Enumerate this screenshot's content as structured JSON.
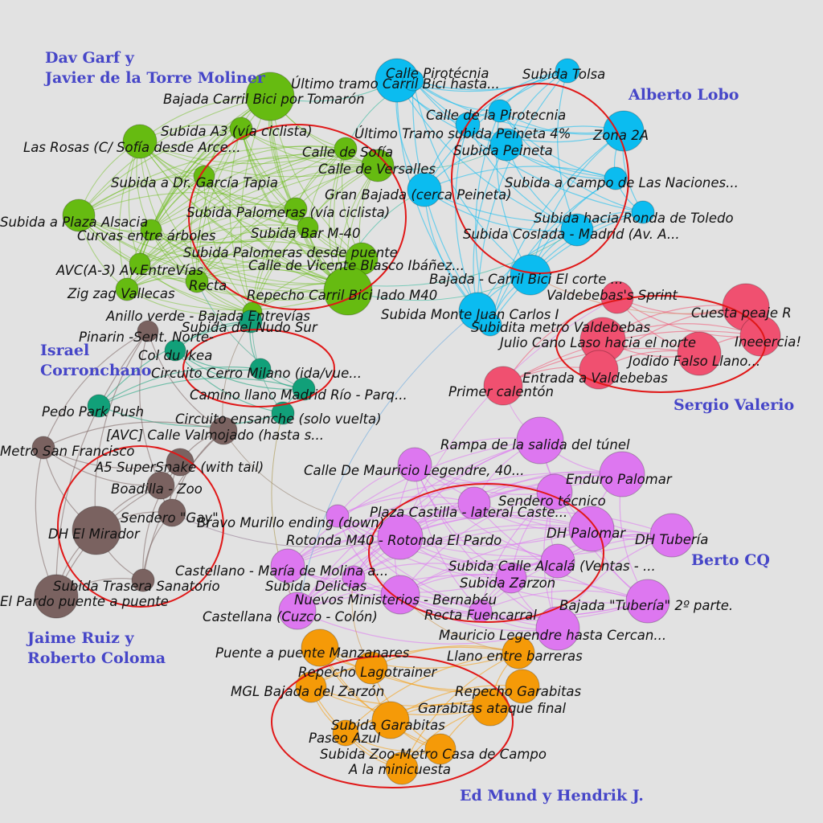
{
  "colors": {
    "background": "#e2e2e2",
    "cluster_ring": "#e01818",
    "group_label": "#4646c8",
    "green": "#66bb11",
    "blue": "#0bbcf0",
    "red": "#f05070",
    "teal": "#11a079",
    "brown": "#7a6260",
    "purple": "#dd77f0",
    "orange": "#f59a08"
  },
  "group_labels": [
    {
      "id": "g-green",
      "lines": [
        "Dav Garf  y",
        "Javier de la Torre Moliner"
      ]
    },
    {
      "id": "g-blue",
      "lines": [
        "Alberto Lobo"
      ]
    },
    {
      "id": "g-red",
      "lines": [
        "Sergio Valerio"
      ]
    },
    {
      "id": "g-teal",
      "lines": [
        "Israel",
        "Corronchano"
      ]
    },
    {
      "id": "g-brown",
      "lines": [
        "Jaime Ruiz  y",
        "Roberto Coloma"
      ]
    },
    {
      "id": "g-purple",
      "lines": [
        "Berto CQ"
      ]
    },
    {
      "id": "g-orange",
      "lines": [
        "Ed Mund y Hendrik J."
      ]
    }
  ],
  "nodes": [
    {
      "id": "n1",
      "group": "green",
      "label": "Bajada Carril Bici por Tomarón"
    },
    {
      "id": "n2",
      "group": "green",
      "label": "Subida A3 (vía ciclista)"
    },
    {
      "id": "n3",
      "group": "green",
      "label": "Las Rosas (C/ Sofía desde Arce..."
    },
    {
      "id": "n4",
      "group": "green",
      "label": "Calle de Sofía"
    },
    {
      "id": "n5",
      "group": "green",
      "label": "Calle de Versalles"
    },
    {
      "id": "n6",
      "group": "green",
      "label": "Subida a Dr. García Tapia"
    },
    {
      "id": "n7",
      "group": "green",
      "label": "Subida Palomeras (vía ciclista)"
    },
    {
      "id": "n8",
      "group": "green",
      "label": "Subida a Plaza Alsacia"
    },
    {
      "id": "n9",
      "group": "green",
      "label": "Curvas entre árboles"
    },
    {
      "id": "n10",
      "group": "green",
      "label": "Subida Bar M-40"
    },
    {
      "id": "n11",
      "group": "green",
      "label": "Subida Palomeras desde puente"
    },
    {
      "id": "n12",
      "group": "green",
      "label": "Calle de Vicente Blasco Ibáñez..."
    },
    {
      "id": "n13",
      "group": "green",
      "label": "AVC(A-3) Av.EntreVías"
    },
    {
      "id": "n14",
      "group": "green",
      "label": "Recta"
    },
    {
      "id": "n15",
      "group": "green",
      "label": "Zig zag Vallecas"
    },
    {
      "id": "n16",
      "group": "green",
      "label": "Repecho Carril Bici lado M40"
    },
    {
      "id": "n17",
      "group": "green",
      "label": "Anillo verde - Bajada Entrevías"
    },
    {
      "id": "n18",
      "group": "blue",
      "label": "Calle Pirotécnia"
    },
    {
      "id": "n19",
      "group": "blue",
      "label": "Último tramo Carril Bici hasta..."
    },
    {
      "id": "n20",
      "group": "blue",
      "label": "Subida Tolsa"
    },
    {
      "id": "n21",
      "group": "blue",
      "label": "Calle de la Pirotecnia"
    },
    {
      "id": "n22",
      "group": "blue",
      "label": "Último Tramo subida Peineta 4%"
    },
    {
      "id": "n23",
      "group": "blue",
      "label": "Zona 2A"
    },
    {
      "id": "n24",
      "group": "blue",
      "label": "Subida Peineta"
    },
    {
      "id": "n25",
      "group": "blue",
      "label": "Subida a Campo de Las Naciones..."
    },
    {
      "id": "n26",
      "group": "blue",
      "label": "Gran Bajada (cerca Peineta)"
    },
    {
      "id": "n27",
      "group": "blue",
      "label": "Subida hacia Ronda de Toledo"
    },
    {
      "id": "n28",
      "group": "blue",
      "label": "Subida Coslada - Madrid (Av. A..."
    },
    {
      "id": "n29",
      "group": "blue",
      "label": "Bajada - Carril Bici El corte ..."
    },
    {
      "id": "n30",
      "group": "blue",
      "label": "Subida Monte Juan Carlos I"
    },
    {
      "id": "n31",
      "group": "blue",
      "label": "Subidita metro Valdebebas"
    },
    {
      "id": "n32",
      "group": "red",
      "label": "Valdebebas's Sprint"
    },
    {
      "id": "n33",
      "group": "red",
      "label": "Cuesta peaje R"
    },
    {
      "id": "n34",
      "group": "red",
      "label": "Ineeercia!"
    },
    {
      "id": "n35",
      "group": "red",
      "label": "Julio Cano Laso hacia el norte"
    },
    {
      "id": "n36",
      "group": "red",
      "label": "Jodido Falso Llano..."
    },
    {
      "id": "n37",
      "group": "red",
      "label": "Entrada a Valdebebas"
    },
    {
      "id": "n38",
      "group": "red",
      "label": "Primer calentón"
    },
    {
      "id": "n39",
      "group": "teal",
      "label": "Subida del Nudo Sur"
    },
    {
      "id": "n40",
      "group": "teal",
      "label": "Col du Ikea"
    },
    {
      "id": "n41",
      "group": "teal",
      "label": "Circuito Cerro Milano (ida/vue..."
    },
    {
      "id": "n42",
      "group": "teal",
      "label": "Camino llano Madrid Río - Parq..."
    },
    {
      "id": "n43",
      "group": "teal",
      "label": "Pedo Park Push"
    },
    {
      "id": "n44",
      "group": "teal",
      "label": "Circuito ensanche (solo vuelta)"
    },
    {
      "id": "n45",
      "group": "brown",
      "label": "Pinarin -Sent. Norte-"
    },
    {
      "id": "n46",
      "group": "brown",
      "label": "[AVC] Calle Valmojado (hasta s..."
    },
    {
      "id": "n47",
      "group": "brown",
      "label": "Metro San Francisco"
    },
    {
      "id": "n48",
      "group": "brown",
      "label": "A5 SuperSnake (with tail)"
    },
    {
      "id": "n49",
      "group": "brown",
      "label": "Boadilla - Zoo"
    },
    {
      "id": "n50",
      "group": "brown",
      "label": "Sendero \"Gay\""
    },
    {
      "id": "n51",
      "group": "brown",
      "label": "DH El Mirador"
    },
    {
      "id": "n52",
      "group": "brown",
      "label": "Subida Trasera Sanatorio"
    },
    {
      "id": "n53",
      "group": "brown",
      "label": "El Pardo puente a puente"
    },
    {
      "id": "n54",
      "group": "purple",
      "label": "Rampa de la salida del túnel"
    },
    {
      "id": "n55",
      "group": "purple",
      "label": "Calle De Mauricio Legendre, 40..."
    },
    {
      "id": "n56",
      "group": "purple",
      "label": "Enduro Palomar"
    },
    {
      "id": "n57",
      "group": "purple",
      "label": "Sendero técnico"
    },
    {
      "id": "n58",
      "group": "purple",
      "label": "Plaza Castilla - lateral Caste..."
    },
    {
      "id": "n59",
      "group": "purple",
      "label": "Bravo Murillo ending (down)"
    },
    {
      "id": "n60",
      "group": "purple",
      "label": "DH Palomar"
    },
    {
      "id": "n61",
      "group": "purple",
      "label": "DH Tubería"
    },
    {
      "id": "n62",
      "group": "purple",
      "label": "Rotonda M40 - Rotonda El Pardo"
    },
    {
      "id": "n63",
      "group": "purple",
      "label": "Subida Calle Alcalá (Ventas - ..."
    },
    {
      "id": "n64",
      "group": "purple",
      "label": "Castellano - María de Molina a..."
    },
    {
      "id": "n65",
      "group": "purple",
      "label": "Subida Zarzon"
    },
    {
      "id": "n66",
      "group": "purple",
      "label": "Subida Delicias"
    },
    {
      "id": "n67",
      "group": "purple",
      "label": "Nuevos Ministerios - Bernabéu"
    },
    {
      "id": "n68",
      "group": "purple",
      "label": "Bajada \"Tubería\" 2º parte."
    },
    {
      "id": "n69",
      "group": "purple",
      "label": "Recta Fuencarral"
    },
    {
      "id": "n70",
      "group": "purple",
      "label": "Castellana (Cuzco - Colón)"
    },
    {
      "id": "n71",
      "group": "purple",
      "label": "Mauricio Legendre hasta Cercan..."
    },
    {
      "id": "n72",
      "group": "orange",
      "label": "Puente a puente Manzanares"
    },
    {
      "id": "n73",
      "group": "orange",
      "label": "Llano entre barreras"
    },
    {
      "id": "n74",
      "group": "orange",
      "label": "Repecho Lagotrainer"
    },
    {
      "id": "n75",
      "group": "orange",
      "label": "MGL Bajada del Zarzón"
    },
    {
      "id": "n76",
      "group": "orange",
      "label": "Repecho Garabitas"
    },
    {
      "id": "n77",
      "group": "orange",
      "label": "Garabitas ataque final"
    },
    {
      "id": "n78",
      "group": "orange",
      "label": "Subida Garabitas"
    },
    {
      "id": "n79",
      "group": "orange",
      "label": "Paseo Azul"
    },
    {
      "id": "n80",
      "group": "orange",
      "label": "Subida Zoo-Metro Casa de Campo"
    },
    {
      "id": "n81",
      "group": "orange",
      "label": "A la minicuesta"
    }
  ]
}
